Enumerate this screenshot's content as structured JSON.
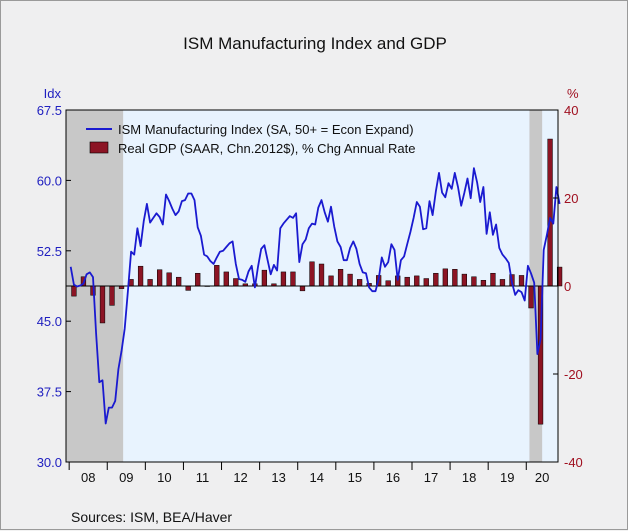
{
  "chart_data": {
    "type": "bar+line",
    "title": "ISM Manufacturing Index and GDP",
    "left_axis": {
      "unit": "Idx",
      "ylim": [
        30.0,
        67.5
      ],
      "ticks": [
        "67.5",
        "60.0",
        "52.5",
        "45.0",
        "37.5",
        "30.0"
      ],
      "tick_values": [
        67.5,
        60.0,
        52.5,
        45.0,
        37.5,
        30.0
      ]
    },
    "right_axis": {
      "unit": "%",
      "ylim": [
        -40,
        40
      ],
      "ticks": [
        "40",
        "20",
        "0",
        "-20",
        "-40"
      ],
      "tick_values": [
        40,
        20,
        0,
        -20,
        -40
      ]
    },
    "x_axis": {
      "range": [
        2007.917,
        2020.833
      ],
      "year_labels": [
        "08",
        "09",
        "10",
        "11",
        "12",
        "13",
        "14",
        "15",
        "16",
        "17",
        "18",
        "19",
        "20"
      ]
    },
    "recessions": [
      [
        2007.917,
        2009.417
      ],
      [
        2020.083,
        2020.417
      ]
    ],
    "legend": {
      "position": "top-left",
      "entries": [
        "ISM Manufacturing Index (SA, 50+ = Econ Expand)",
        "Real GDP (SAAR, Chn.2012$), % Chg Annual Rate"
      ]
    },
    "series": [
      {
        "name": "ISM Manufacturing Index (SA, 50+ = Econ Expand)",
        "type": "line",
        "axis": "left",
        "color": "#1a1ad0",
        "start": "2008-01",
        "frequency": "monthly",
        "values": [
          50.8,
          48.9,
          48.7,
          48.8,
          49.0,
          50.0,
          50.2,
          49.7,
          43.7,
          38.5,
          38.7,
          34.1,
          35.8,
          35.8,
          36.5,
          39.9,
          41.8,
          44.2,
          48.2,
          52.4,
          52.1,
          54.9,
          53.0,
          55.7,
          57.5,
          55.5,
          56.0,
          56.5,
          56.1,
          55.3,
          58.5,
          57.8,
          57.0,
          56.3,
          56.7,
          57.8,
          57.9,
          58.6,
          58.6,
          57.9,
          55.0,
          54.1,
          52.1,
          51.9,
          51.4,
          51.1,
          51.8,
          52.4,
          52.5,
          52.9,
          53.3,
          53.5,
          51.1,
          49.5,
          49.4,
          49.2,
          50.3,
          50.9,
          48.6,
          50.8,
          52.7,
          53.1,
          51.5,
          50.0,
          51.0,
          50.4,
          54.9,
          55.4,
          55.8,
          56.2,
          56.0,
          56.5,
          51.3,
          53.2,
          53.7,
          54.9,
          55.4,
          55.3,
          57.1,
          57.9,
          56.6,
          55.6,
          57.2,
          55.1,
          53.5,
          52.9,
          51.5,
          51.5,
          52.8,
          53.5,
          52.7,
          51.1,
          50.2,
          50.1,
          48.6,
          48.2,
          48.2,
          49.5,
          51.8,
          50.8,
          51.3,
          53.2,
          52.6,
          49.4,
          51.5,
          51.9,
          53.2,
          54.5,
          56.0,
          57.7,
          57.2,
          54.8,
          54.9,
          57.8,
          56.3,
          58.8,
          60.8,
          58.7,
          58.2,
          59.7,
          59.1,
          60.8,
          59.3,
          57.3,
          58.7,
          60.2,
          58.1,
          61.3,
          59.8,
          57.7,
          59.3,
          54.3,
          56.6,
          54.2,
          55.3,
          52.8,
          52.1,
          51.7,
          51.2,
          49.1,
          47.8,
          48.3,
          48.1,
          47.2,
          50.9,
          50.1,
          49.1,
          41.5,
          43.1,
          52.6,
          54.2,
          56.0,
          55.4,
          59.3,
          57.5
        ]
      },
      {
        "name": "Real GDP (SAAR, Chn.2012$), % Chg Annual Rate",
        "type": "bar",
        "axis": "right",
        "color": "#8c1424",
        "frequency": "quarterly",
        "start": "2008-Q1",
        "values": [
          -2.3,
          2.1,
          -2.1,
          -8.4,
          -4.4,
          -0.6,
          1.5,
          4.5,
          1.5,
          3.7,
          3.0,
          2.0,
          -1.0,
          2.9,
          -0.1,
          4.7,
          3.2,
          1.7,
          0.5,
          0.5,
          3.6,
          0.5,
          3.2,
          3.2,
          -1.1,
          5.5,
          5.0,
          2.3,
          3.8,
          2.7,
          1.5,
          0.6,
          2.4,
          1.2,
          2.3,
          2.0,
          2.3,
          1.7,
          2.9,
          3.9,
          3.8,
          2.7,
          2.1,
          1.3,
          2.9,
          1.5,
          2.6,
          2.4,
          -5.0,
          -31.4,
          33.4,
          4.3
        ]
      }
    ]
  },
  "source_text": "Sources:  ISM, BEA/Haver"
}
